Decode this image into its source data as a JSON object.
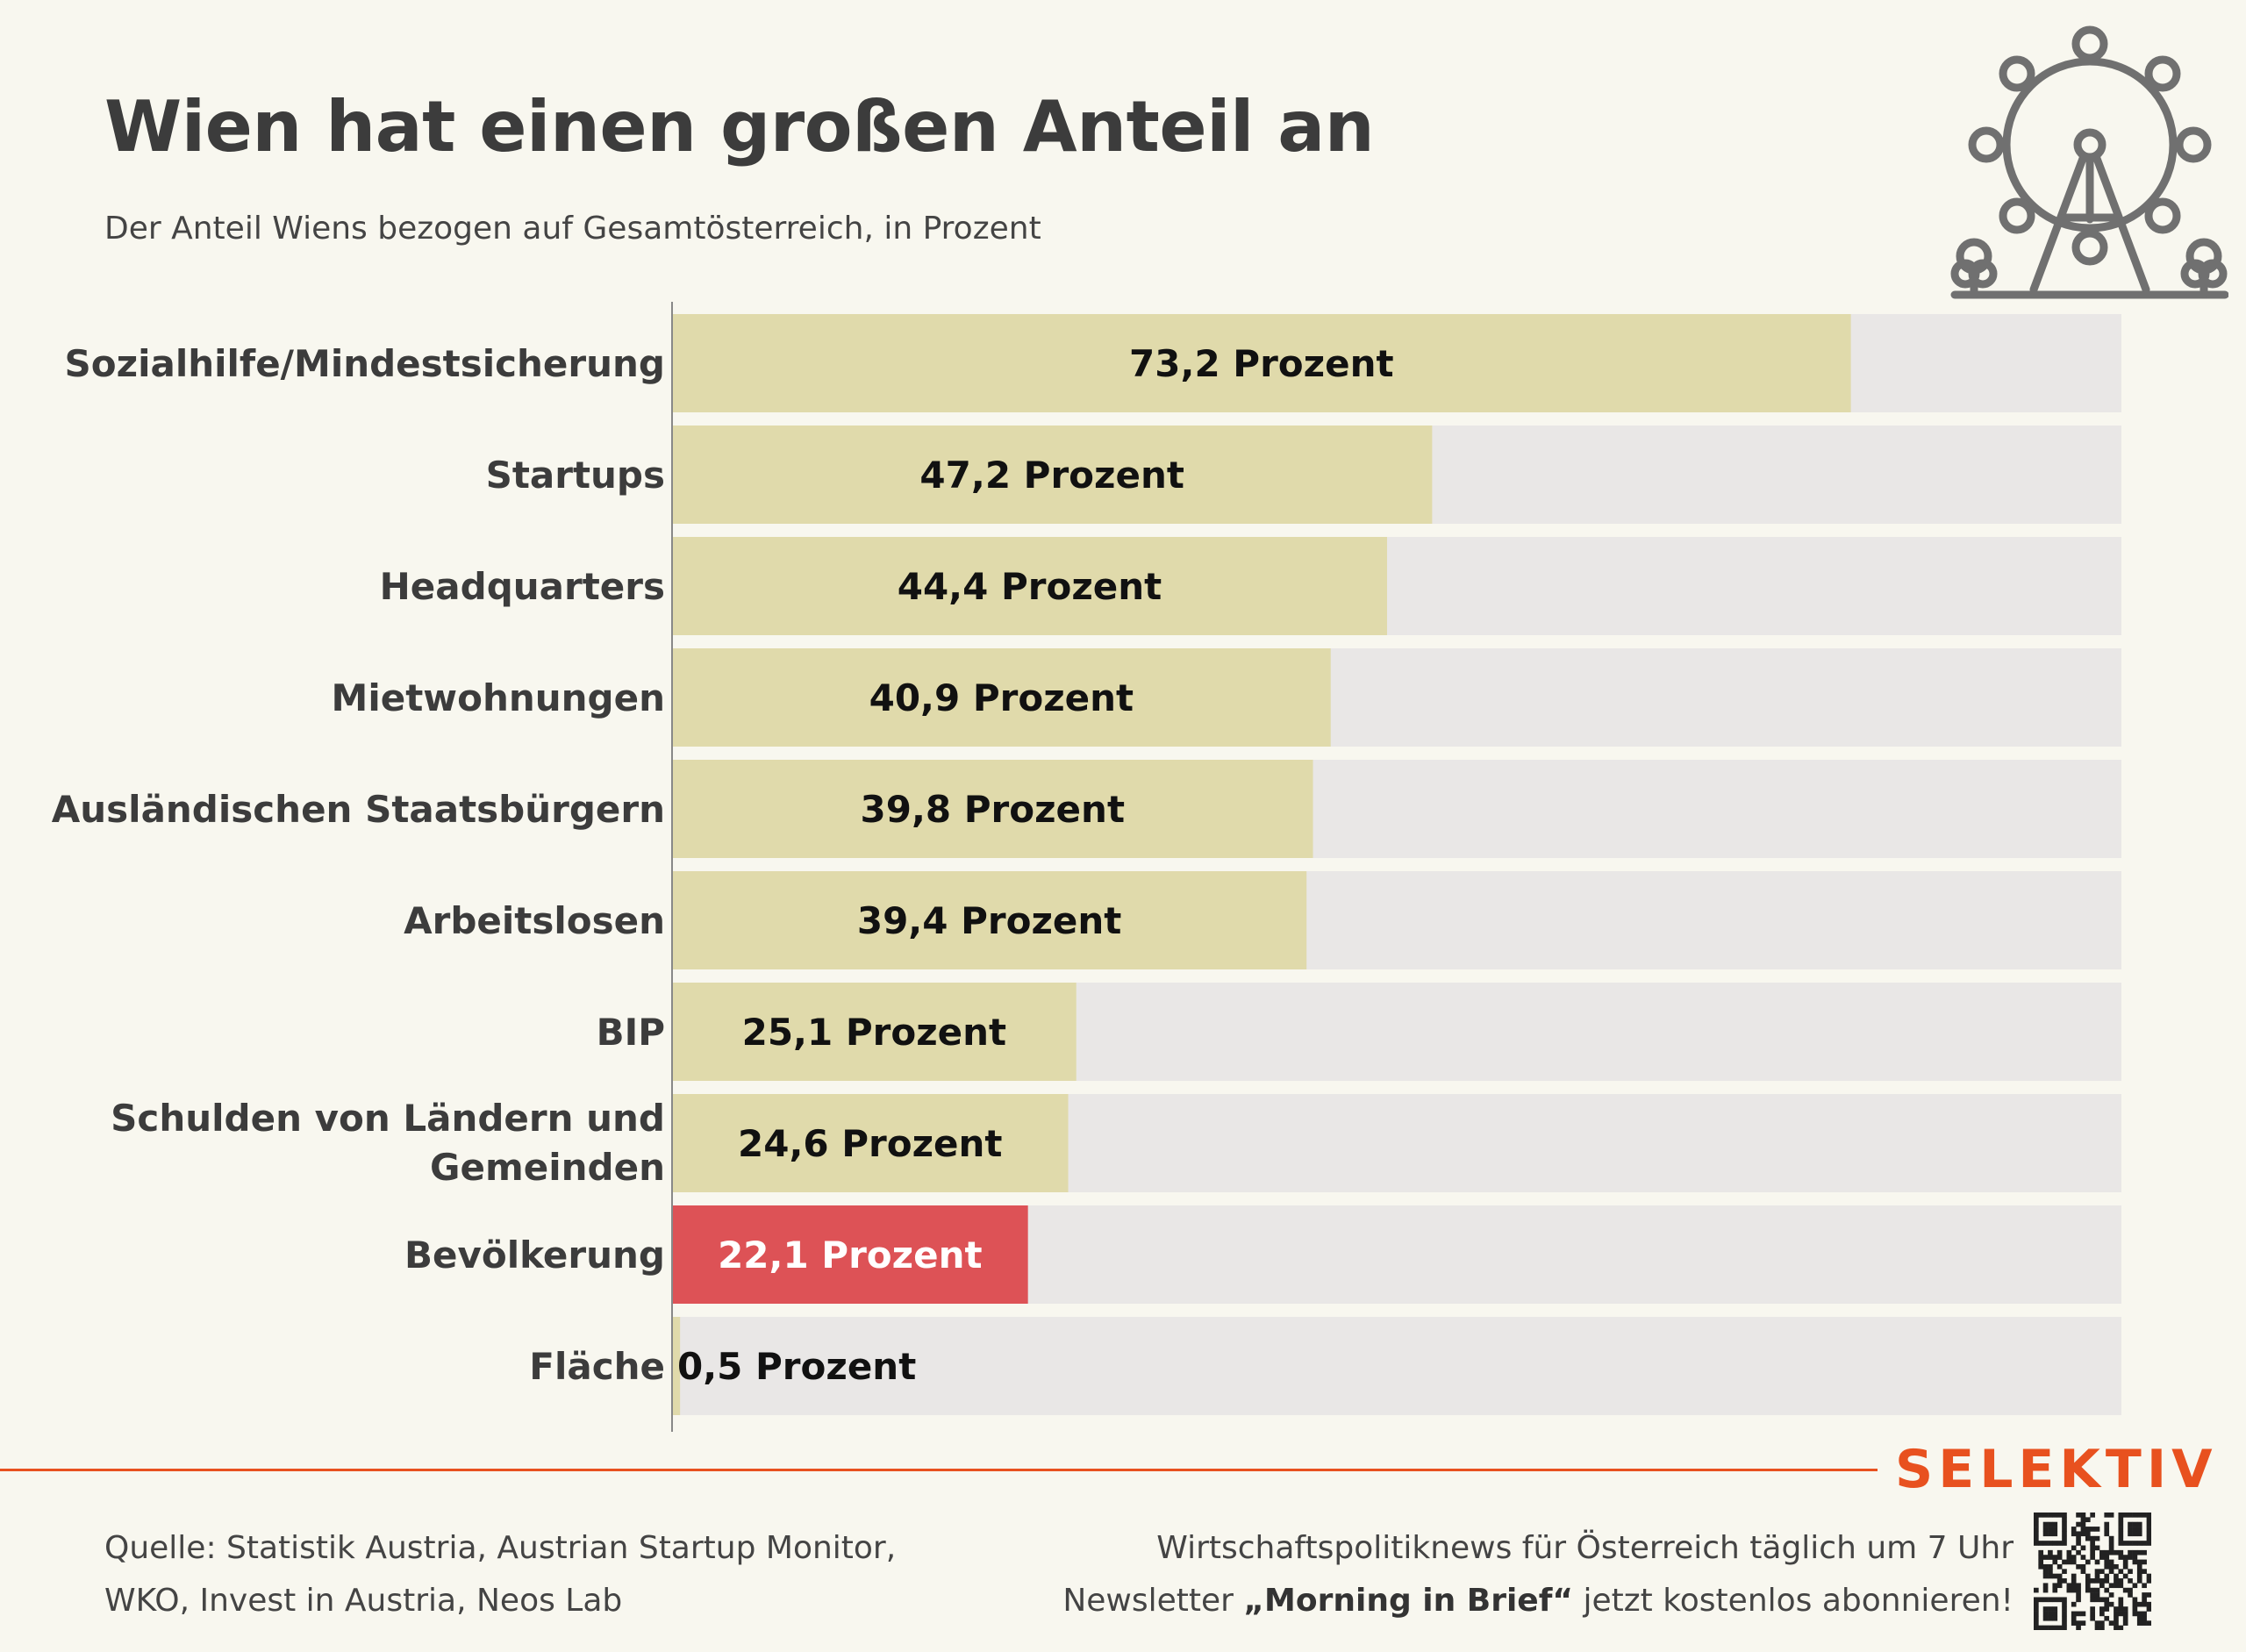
{
  "header": {
    "title": "Wien hat einen großen Anteil an",
    "subtitle": "Der Anteil Wiens bezogen auf Gesamtösterreich, in Prozent"
  },
  "chart_data": {
    "type": "bar",
    "orientation": "horizontal",
    "categories": [
      "Sozialhilfe/Mindestsicherung",
      "Startups",
      "Headquarters",
      "Mietwohnungen",
      "Ausländischen Staatsbürgern",
      "Arbeitslosen",
      "BIP",
      "Schulden von Ländern und Gemeinden",
      "Bevölkerung",
      "Fläche"
    ],
    "values": [
      73.2,
      47.2,
      44.4,
      40.9,
      39.8,
      39.4,
      25.1,
      24.6,
      22.1,
      0.5
    ],
    "value_labels": [
      "73,2 Prozent",
      "47,2 Prozent",
      "44,4 Prozent",
      "40,9 Prozent",
      "39,8 Prozent",
      "39,4 Prozent",
      "25,1 Prozent",
      "24,6 Prozent",
      "22,1 Prozent",
      "0,5 Prozent"
    ],
    "highlight_index": 8,
    "xlim": [
      0,
      90
    ],
    "grid": false,
    "colors": {
      "bar": "#e0daab",
      "highlight": "#dd5256",
      "track": "#e9e7e6",
      "axis": "#888888",
      "label": "#3c3c3c",
      "value_text": "#111111",
      "highlight_text": "#ffffff"
    }
  },
  "footer": {
    "brand": "SELEKTIV",
    "source_line1": "Quelle: Statistik Austria, Austrian Startup Monitor,",
    "source_line2": "WKO, Invest in Austria, Neos Lab",
    "promo_line1": "Wirtschaftspolitiknews für Österreich täglich um 7 Uhr",
    "promo_line2_pre": "Newsletter ",
    "promo_line2_bold": "„Morning in Brief“",
    "promo_line2_post": " jetzt kostenlos abonnieren!",
    "accent_color": "#e8511f"
  },
  "icons": [
    "ferris-wheel-icon",
    "qr-code-icon"
  ]
}
